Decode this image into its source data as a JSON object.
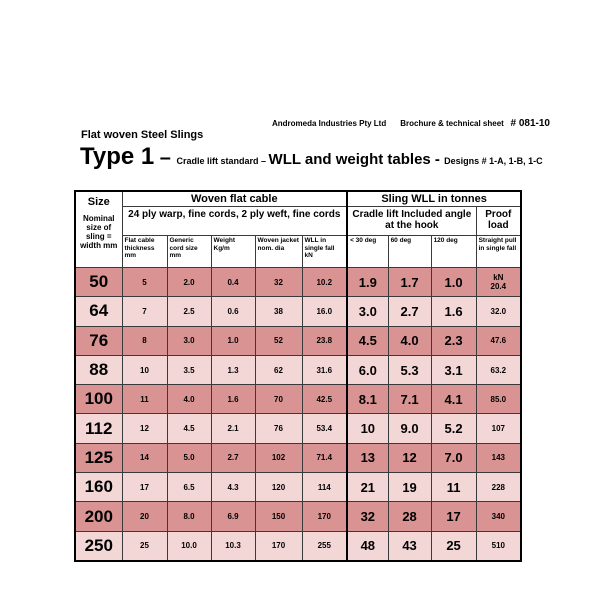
{
  "header": {
    "company": "Andromeda Industries Pty Ltd",
    "doc_type": "Brochure & technical sheet",
    "doc_code": "# 081-10"
  },
  "subtitle": "Flat woven Steel Slings",
  "title": {
    "type": "Type 1",
    "dash": " – ",
    "cradle": "Cradle lift standard – ",
    "wll": "WLL and weight tables",
    "dash2": " - ",
    "designs": "Designs # 1-A, 1-B, 1-C"
  },
  "table": {
    "size_header": "Size",
    "size_subheader": "Nominal size of sling = width mm",
    "woven_header": "Woven flat cable",
    "woven_subheader": "24 ply warp, fine cords, 2 ply weft, fine cords",
    "sling_header": "Sling WLL in tonnes",
    "cradle_header": "Cradle lift Included angle at the hook",
    "proof_header": "Proof load",
    "columns": [
      "Flat cable thickness mm",
      "Generic cord size mm",
      "Weight Kg/m",
      "Woven jacket nom. dia",
      "WLL in single fall kN",
      "< 30 deg",
      "60 deg",
      "120 deg",
      "Straight pull in single fall"
    ],
    "proof_unit": "kN",
    "rows": [
      {
        "size": "50",
        "thickness": "5",
        "cord": "2.0",
        "weight": "0.4",
        "jacket": "32",
        "wll_single": "10.2",
        "d30": "1.9",
        "d60": "1.7",
        "d120": "1.0",
        "proof": "20.4"
      },
      {
        "size": "64",
        "thickness": "7",
        "cord": "2.5",
        "weight": "0.6",
        "jacket": "38",
        "wll_single": "16.0",
        "d30": "3.0",
        "d60": "2.7",
        "d120": "1.6",
        "proof": "32.0"
      },
      {
        "size": "76",
        "thickness": "8",
        "cord": "3.0",
        "weight": "1.0",
        "jacket": "52",
        "wll_single": "23.8",
        "d30": "4.5",
        "d60": "4.0",
        "d120": "2.3",
        "proof": "47.6"
      },
      {
        "size": "88",
        "thickness": "10",
        "cord": "3.5",
        "weight": "1.3",
        "jacket": "62",
        "wll_single": "31.6",
        "d30": "6.0",
        "d60": "5.3",
        "d120": "3.1",
        "proof": "63.2"
      },
      {
        "size": "100",
        "thickness": "11",
        "cord": "4.0",
        "weight": "1.6",
        "jacket": "70",
        "wll_single": "42.5",
        "d30": "8.1",
        "d60": "7.1",
        "d120": "4.1",
        "proof": "85.0"
      },
      {
        "size": "112",
        "thickness": "12",
        "cord": "4.5",
        "weight": "2.1",
        "jacket": "76",
        "wll_single": "53.4",
        "d30": "10",
        "d60": "9.0",
        "d120": "5.2",
        "proof": "107"
      },
      {
        "size": "125",
        "thickness": "14",
        "cord": "5.0",
        "weight": "2.7",
        "jacket": "102",
        "wll_single": "71.4",
        "d30": "13",
        "d60": "12",
        "d120": "7.0",
        "proof": "143"
      },
      {
        "size": "160",
        "thickness": "17",
        "cord": "6.5",
        "weight": "4.3",
        "jacket": "120",
        "wll_single": "114",
        "d30": "21",
        "d60": "19",
        "d120": "11",
        "proof": "228"
      },
      {
        "size": "200",
        "thickness": "20",
        "cord": "8.0",
        "weight": "6.9",
        "jacket": "150",
        "wll_single": "170",
        "d30": "32",
        "d60": "28",
        "d120": "17",
        "proof": "340"
      },
      {
        "size": "250",
        "thickness": "25",
        "cord": "10.0",
        "weight": "10.3",
        "jacket": "170",
        "wll_single": "255",
        "d30": "48",
        "d60": "43",
        "d120": "25",
        "proof": "510"
      }
    ]
  },
  "colors": {
    "row_dark": "#d99393",
    "row_light": "#f3d6d6",
    "background": "#ffffff"
  }
}
